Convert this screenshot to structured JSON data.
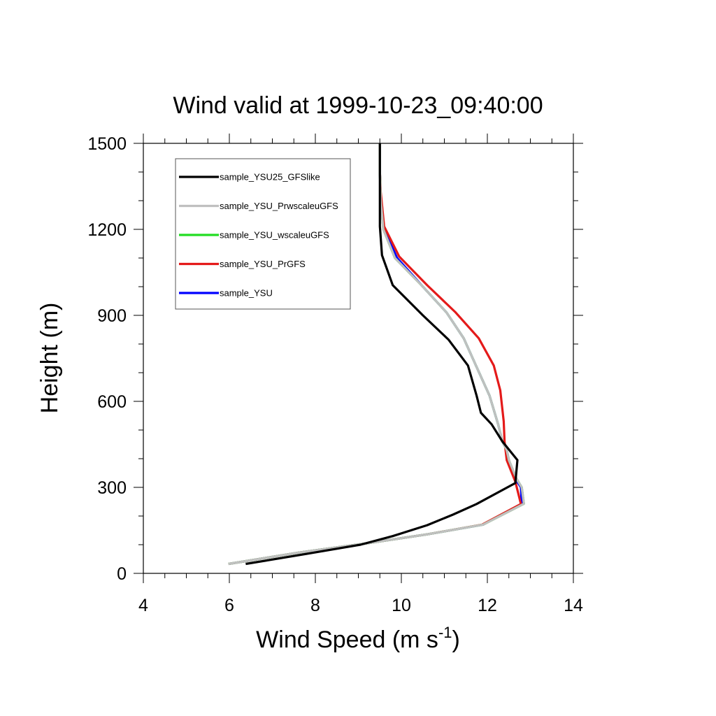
{
  "chart_data": {
    "type": "line",
    "title": "Wind valid at 1999-10-23_09:40:00",
    "xlabel": "Wind Speed (m s",
    "xlabel_sup": "-1",
    "xlabel_end": ")",
    "ylabel": "Height (m)",
    "xlim": [
      4,
      14
    ],
    "ylim": [
      0,
      1500
    ],
    "xticks": [
      4,
      6,
      8,
      10,
      12,
      14
    ],
    "yticks": [
      0,
      300,
      600,
      900,
      1200,
      1500
    ],
    "grid": false,
    "legend_position": "top-left",
    "series": [
      {
        "name": "sample_YSU",
        "color": "#0000ff",
        "points": [
          [
            5.98,
            33
          ],
          [
            7.6,
            72
          ],
          [
            9.2,
            105
          ],
          [
            10.6,
            136
          ],
          [
            11.9,
            170
          ],
          [
            12.8,
            243
          ],
          [
            12.78,
            300
          ],
          [
            12.65,
            330
          ],
          [
            12.5,
            395
          ],
          [
            12.45,
            430
          ],
          [
            12.35,
            460
          ],
          [
            12.25,
            520
          ],
          [
            12.05,
            620
          ],
          [
            11.75,
            720
          ],
          [
            11.45,
            820
          ],
          [
            11.05,
            910
          ],
          [
            10.5,
            1000
          ],
          [
            9.9,
            1100
          ],
          [
            9.6,
            1200
          ],
          [
            9.52,
            1300
          ],
          [
            9.5,
            1400
          ],
          [
            9.5,
            1500
          ]
        ]
      },
      {
        "name": "sample_YSU_PrGFS",
        "color": "#e41a1a",
        "points": [
          [
            5.98,
            33
          ],
          [
            7.6,
            72
          ],
          [
            9.2,
            105
          ],
          [
            10.6,
            136
          ],
          [
            11.88,
            170
          ],
          [
            12.78,
            242
          ],
          [
            12.65,
            320
          ],
          [
            12.45,
            395
          ],
          [
            12.4,
            460
          ],
          [
            12.38,
            530
          ],
          [
            12.3,
            638
          ],
          [
            12.15,
            725
          ],
          [
            11.8,
            820
          ],
          [
            11.25,
            912
          ],
          [
            10.6,
            1005
          ],
          [
            9.95,
            1105
          ],
          [
            9.6,
            1210
          ],
          [
            9.52,
            1330
          ],
          [
            9.5,
            1400
          ],
          [
            9.5,
            1500
          ]
        ]
      },
      {
        "name": "sample_YSU_wscaleuGFS",
        "color": "#22dd22",
        "points": [
          [
            5.98,
            33
          ],
          [
            7.6,
            72
          ],
          [
            9.2,
            105
          ],
          [
            10.6,
            136
          ],
          [
            11.9,
            170
          ],
          [
            12.85,
            243
          ],
          [
            12.8,
            300
          ],
          [
            12.68,
            330
          ],
          [
            12.5,
            395
          ],
          [
            12.45,
            430
          ],
          [
            12.35,
            460
          ],
          [
            12.25,
            520
          ],
          [
            12.05,
            620
          ],
          [
            11.75,
            720
          ],
          [
            11.45,
            820
          ],
          [
            11.05,
            910
          ],
          [
            10.5,
            1000
          ],
          [
            9.85,
            1100
          ],
          [
            9.58,
            1200
          ],
          [
            9.52,
            1300
          ],
          [
            9.5,
            1400
          ],
          [
            9.5,
            1500
          ]
        ]
      },
      {
        "name": "sample_YSU_PrwscaleuGFS",
        "color": "#c0c0c0",
        "points": [
          [
            5.98,
            33
          ],
          [
            7.6,
            72
          ],
          [
            9.2,
            105
          ],
          [
            10.6,
            136
          ],
          [
            11.9,
            170
          ],
          [
            12.85,
            243
          ],
          [
            12.8,
            300
          ],
          [
            12.68,
            330
          ],
          [
            12.5,
            395
          ],
          [
            12.45,
            430
          ],
          [
            12.35,
            460
          ],
          [
            12.25,
            520
          ],
          [
            12.05,
            620
          ],
          [
            11.75,
            720
          ],
          [
            11.45,
            820
          ],
          [
            11.05,
            910
          ],
          [
            10.5,
            1000
          ],
          [
            9.85,
            1100
          ],
          [
            9.58,
            1200
          ],
          [
            9.52,
            1300
          ],
          [
            9.5,
            1400
          ],
          [
            9.5,
            1500
          ]
        ]
      },
      {
        "name": "sample_YSU25_GFSlike",
        "color": "#000000",
        "points": [
          [
            6.38,
            33
          ],
          [
            7.8,
            68
          ],
          [
            9.05,
            100
          ],
          [
            9.8,
            130
          ],
          [
            10.6,
            168
          ],
          [
            11.2,
            205
          ],
          [
            11.75,
            242
          ],
          [
            12.65,
            315
          ],
          [
            12.7,
            395
          ],
          [
            12.35,
            460
          ],
          [
            12.1,
            520
          ],
          [
            11.85,
            560
          ],
          [
            11.75,
            620
          ],
          [
            11.55,
            725
          ],
          [
            11.1,
            815
          ],
          [
            10.5,
            900
          ],
          [
            9.8,
            1005
          ],
          [
            9.55,
            1110
          ],
          [
            9.5,
            1210
          ],
          [
            9.5,
            1300
          ],
          [
            9.5,
            1400
          ],
          [
            9.5,
            1500
          ]
        ]
      }
    ],
    "legend_order": [
      "sample_YSU25_GFSlike",
      "sample_YSU_PrwscaleuGFS",
      "sample_YSU_wscaleuGFS",
      "sample_YSU_PrGFS",
      "sample_YSU"
    ]
  }
}
